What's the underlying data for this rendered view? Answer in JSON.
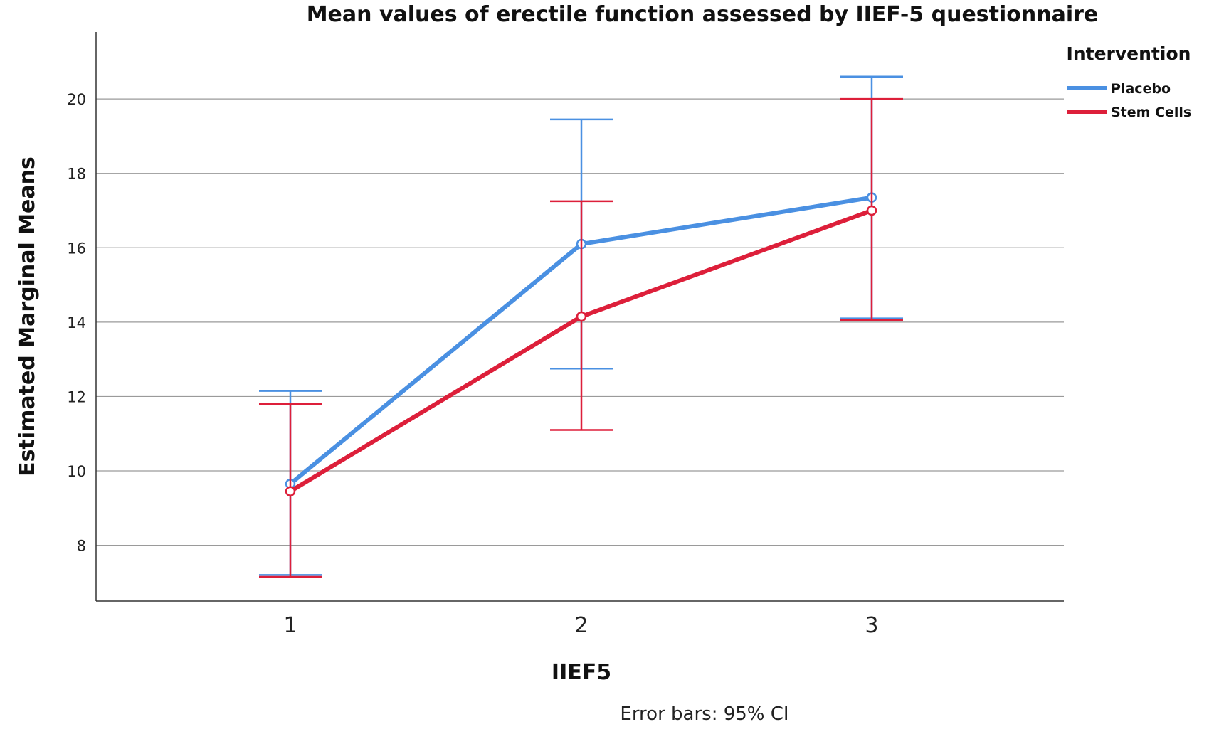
{
  "chart_data": {
    "type": "line",
    "title": "Mean values of erectile function assessed by IIEF-5 questionnaire",
    "xlabel": "IIEF5",
    "ylabel": "Estimated Marginal Means",
    "categories": [
      "1",
      "2",
      "3"
    ],
    "y_ticks": [
      "8",
      "10",
      "12",
      "14",
      "16",
      "18",
      "20"
    ],
    "ylim": [
      6.5,
      21.8
    ],
    "grid": true,
    "legend": {
      "title": "Intervention",
      "position": "top-right"
    },
    "footnote": "Error bars: 95% CI",
    "series": [
      {
        "name": "Placebo",
        "color": "#4a90e2",
        "values": [
          9.65,
          16.1,
          17.35
        ],
        "ci_lower": [
          7.2,
          12.75,
          14.1
        ],
        "ci_upper": [
          12.15,
          19.45,
          20.6
        ]
      },
      {
        "name": "Stem Cells",
        "color": "#dd1f3a",
        "values": [
          9.45,
          14.15,
          17.0
        ],
        "ci_lower": [
          7.15,
          11.1,
          14.05
        ],
        "ci_upper": [
          11.8,
          17.25,
          20.0
        ]
      }
    ]
  }
}
